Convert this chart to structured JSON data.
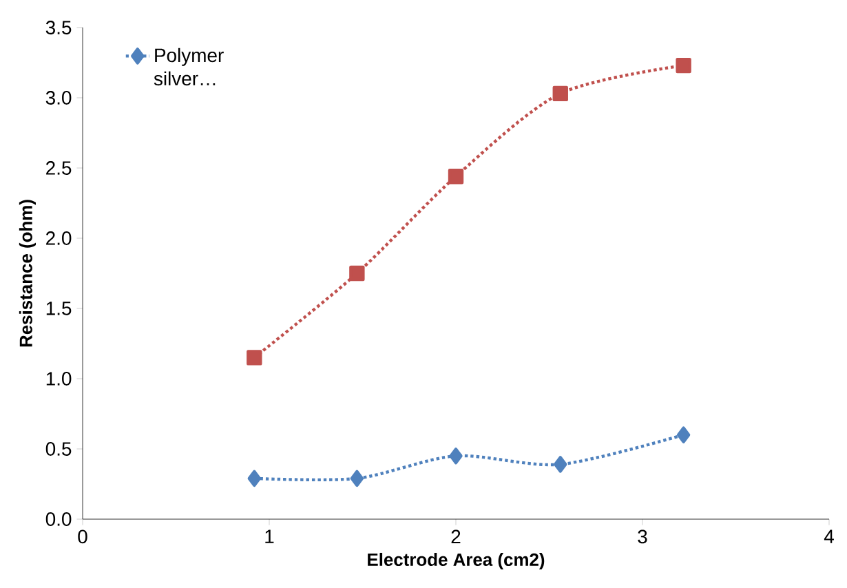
{
  "chart_data": {
    "type": "line",
    "xlabel": "Electrode Area (cm2)",
    "ylabel": "Resistance (ohm)",
    "xlim": [
      0,
      4
    ],
    "xticks": [
      0,
      1,
      2,
      3,
      4
    ],
    "ylim": [
      0,
      3.5
    ],
    "yticks": [
      {
        "value": 0,
        "label": "0.0"
      },
      0.5,
      {
        "value": 1,
        "label": "1.0"
      },
      1.5,
      {
        "value": 2,
        "label": "2.0"
      },
      2.5,
      {
        "value": 3,
        "label": "3.0"
      },
      3.5
    ],
    "grid": false,
    "legend": "top left",
    "line_style": "dotted",
    "series": [
      {
        "name": "Polymer silver…",
        "color": "#4f81bd",
        "marker": "diamond",
        "x": [
          0.92,
          1.47,
          2.0,
          2.56,
          3.22
        ],
        "values": [
          0.29,
          0.29,
          0.45,
          0.39,
          0.6
        ]
      },
      {
        "color": "#c0504d",
        "marker": "square",
        "x": [
          0.92,
          1.47,
          2.0,
          2.56,
          3.22
        ],
        "values": [
          1.15,
          1.75,
          2.44,
          3.03,
          3.23
        ]
      }
    ]
  }
}
